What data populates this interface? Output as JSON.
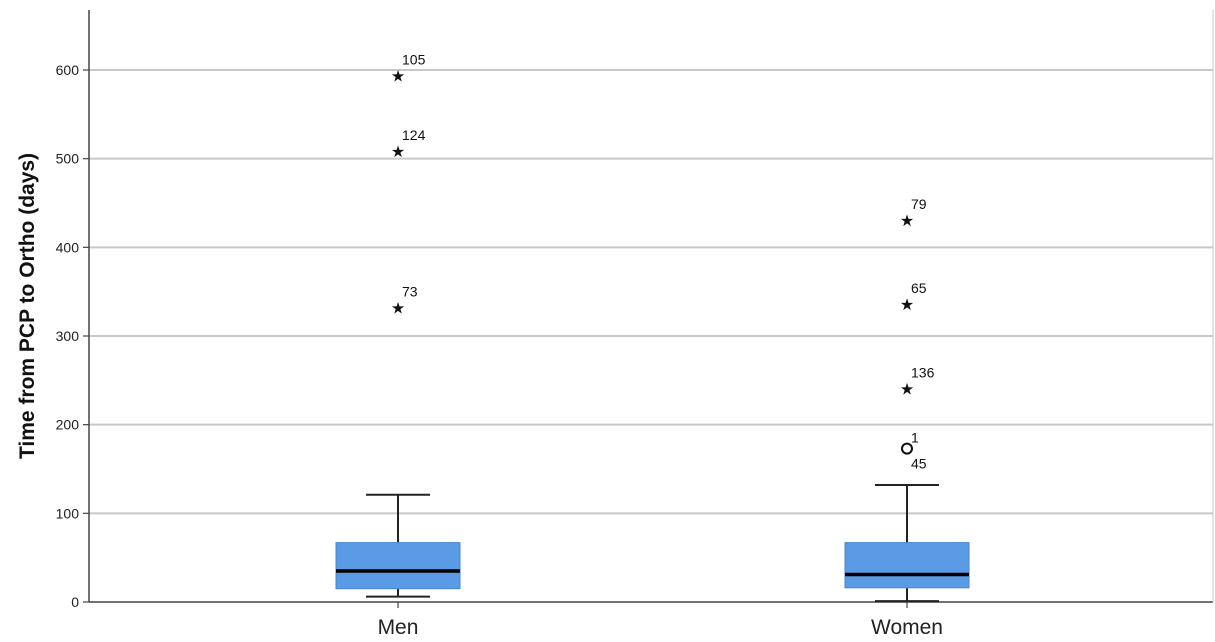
{
  "chart_data": {
    "type": "boxplot",
    "title": "",
    "xlabel": "",
    "ylabel": "Time from PCP to Ortho (days)",
    "ylim": [
      0,
      665
    ],
    "yticks": [
      0,
      100,
      200,
      300,
      400,
      500,
      600
    ],
    "grid": true,
    "box_color": "#5b9be5",
    "categories": [
      "Men",
      "Women"
    ],
    "boxes": [
      {
        "category": "Men",
        "whisker_low": 6,
        "q1": 15,
        "median": 35,
        "q3": 67,
        "whisker_high": 121,
        "outliers": [
          {
            "label": "105",
            "value": 595,
            "marker": "star"
          },
          {
            "label": "124",
            "value": 510,
            "marker": "star"
          },
          {
            "label": "73",
            "value": 333,
            "marker": "star"
          }
        ]
      },
      {
        "category": "Women",
        "whisker_low": 1,
        "q1": 16,
        "median": 31,
        "q3": 67,
        "whisker_high": 132,
        "outliers": [
          {
            "label": "79",
            "value": 432,
            "marker": "star"
          },
          {
            "label": "65",
            "value": 337,
            "marker": "star"
          },
          {
            "label": "136",
            "value": 242,
            "marker": "star"
          },
          {
            "label": "1",
            "value": 173,
            "marker": "circle"
          },
          {
            "label": "45",
            "value": 173,
            "marker": "circle"
          }
        ]
      }
    ]
  }
}
